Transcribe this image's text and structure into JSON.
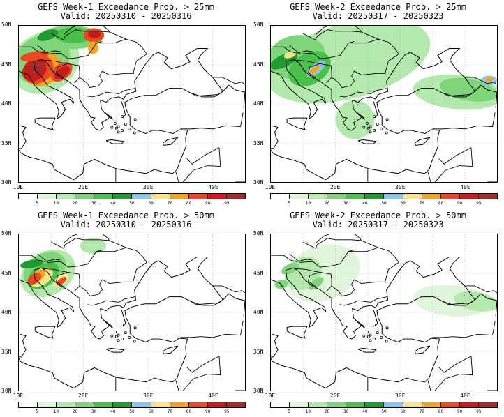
{
  "panels": [
    {
      "id": "w1-25",
      "title": "GEFS Week-1 Exceedance Prob. > 25mm",
      "valid": "Valid: 20250310 - 20250316"
    },
    {
      "id": "w2-25",
      "title": "GEFS Week-2 Exceedance Prob. > 25mm",
      "valid": "Valid: 20250317 - 20250323"
    },
    {
      "id": "w1-50",
      "title": "GEFS Week-1 Exceedance Prob. > 50mm",
      "valid": "Valid: 20250310 - 20250316"
    },
    {
      "id": "w2-50",
      "title": "GEFS Week-2 Exceedance Prob. > 50mm",
      "valid": "Valid: 20250317 - 20250323"
    }
  ],
  "lat_labels": [
    "50N",
    "45N",
    "40N",
    "35N",
    "30N"
  ],
  "lon_labels": [
    "10E",
    "20E",
    "30E",
    "40E"
  ],
  "colorbar": {
    "labels": [
      "5",
      "10",
      "20",
      "30",
      "40",
      "50",
      "60",
      "70",
      "80",
      "90",
      "95"
    ],
    "colors": [
      "#ffffff",
      "#e0f5dc",
      "#b4e9ad",
      "#7fd67a",
      "#48c04a",
      "#1d9b30",
      "#8ac4ec",
      "#fbe387",
      "#f4a622",
      "#ea4a1f",
      "#c71a1b",
      "#a52a2a"
    ]
  },
  "map_extent": {
    "lon": [
      10,
      45
    ],
    "lat": [
      30,
      50
    ]
  }
}
